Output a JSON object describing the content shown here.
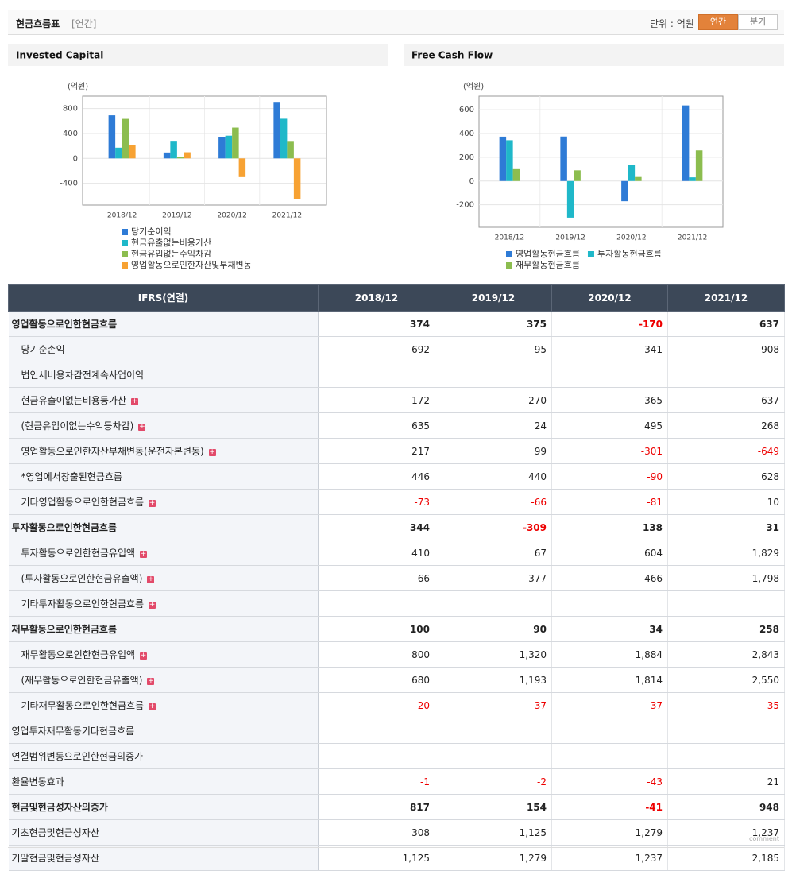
{
  "header": {
    "title": "현금흐름표",
    "period": "[연간]",
    "unit": "단위 : 억원",
    "tabs": [
      "연간",
      "분기"
    ],
    "active_tab": 0
  },
  "chart_data": [
    {
      "type": "bar",
      "title": "Invested Capital",
      "unit_label": "(억원)",
      "categories": [
        "2018/12",
        "2019/12",
        "2020/12",
        "2021/12"
      ],
      "series": [
        {
          "name": "당기순이익",
          "color": "#2e7bd6",
          "values": [
            692,
            95,
            341,
            908
          ]
        },
        {
          "name": "현금유출없는비용가산",
          "color": "#1fb8c9",
          "values": [
            172,
            270,
            365,
            637
          ]
        },
        {
          "name": "현금유입없는수익차감",
          "color": "#8cbd4f",
          "values": [
            635,
            24,
            495,
            268
          ]
        },
        {
          "name": "영업활동으로인한자산및부채변동",
          "color": "#f7a233",
          "values": [
            217,
            99,
            -301,
            -649
          ]
        }
      ],
      "ylim": [
        -750,
        1000
      ],
      "yticks": [
        -400,
        0,
        400,
        800
      ],
      "grid": true
    },
    {
      "type": "bar",
      "title": "Free Cash Flow",
      "unit_label": "(억원)",
      "categories": [
        "2018/12",
        "2019/12",
        "2020/12",
        "2021/12"
      ],
      "series": [
        {
          "name": "영업활동현금흐름",
          "color": "#2e7bd6",
          "values": [
            374,
            375,
            -170,
            637
          ]
        },
        {
          "name": "투자활동현금흐름",
          "color": "#1fb8c9",
          "values": [
            344,
            -309,
            138,
            31
          ]
        },
        {
          "name": "재무활동현금흐름",
          "color": "#8cbd4f",
          "values": [
            100,
            90,
            34,
            258
          ]
        }
      ],
      "ylim": [
        -390,
        715
      ],
      "yticks": [
        -200,
        0,
        200,
        400,
        600
      ],
      "grid": true
    }
  ],
  "table": {
    "columns": [
      "IFRS(연결)",
      "2018/12",
      "2019/12",
      "2020/12",
      "2021/12"
    ],
    "rows": [
      {
        "label": "영업활동으로인한현금흐름",
        "level": 0,
        "bold": true,
        "expand": false,
        "values": [
          "374",
          "375",
          "-170",
          "637"
        ]
      },
      {
        "label": "당기순손익",
        "level": 1,
        "bold": false,
        "expand": false,
        "values": [
          "692",
          "95",
          "341",
          "908"
        ]
      },
      {
        "label": "법인세비용차감전계속사업이익",
        "level": 1,
        "bold": false,
        "expand": false,
        "values": [
          null,
          null,
          null,
          null
        ]
      },
      {
        "label": "현금유출이없는비용등가산",
        "level": 1,
        "bold": false,
        "expand": true,
        "values": [
          "172",
          "270",
          "365",
          "637"
        ]
      },
      {
        "label": "(현금유입이없는수익등차감)",
        "level": 1,
        "bold": false,
        "expand": true,
        "values": [
          "635",
          "24",
          "495",
          "268"
        ]
      },
      {
        "label": "영업활동으로인한자산부채변동(운전자본변동)",
        "level": 1,
        "bold": false,
        "expand": true,
        "values": [
          "217",
          "99",
          "-301",
          "-649"
        ]
      },
      {
        "label": "*영업에서창출된현금흐름",
        "level": 1,
        "bold": false,
        "expand": false,
        "values": [
          "446",
          "440",
          "-90",
          "628"
        ]
      },
      {
        "label": "기타영업활동으로인한현금흐름",
        "level": 1,
        "bold": false,
        "expand": true,
        "values": [
          "-73",
          "-66",
          "-81",
          "10"
        ]
      },
      {
        "label": "투자활동으로인한현금흐름",
        "level": 0,
        "bold": true,
        "expand": false,
        "values": [
          "344",
          "-309",
          "138",
          "31"
        ]
      },
      {
        "label": "투자활동으로인한현금유입액",
        "level": 1,
        "bold": false,
        "expand": true,
        "values": [
          "410",
          "67",
          "604",
          "1,829"
        ]
      },
      {
        "label": "(투자활동으로인한현금유출액)",
        "level": 1,
        "bold": false,
        "expand": true,
        "values": [
          "66",
          "377",
          "466",
          "1,798"
        ]
      },
      {
        "label": "기타투자활동으로인한현금흐름",
        "level": 1,
        "bold": false,
        "expand": true,
        "values": [
          null,
          null,
          null,
          null
        ]
      },
      {
        "label": "재무활동으로인한현금흐름",
        "level": 0,
        "bold": true,
        "expand": false,
        "values": [
          "100",
          "90",
          "34",
          "258"
        ]
      },
      {
        "label": "재무활동으로인한현금유입액",
        "level": 1,
        "bold": false,
        "expand": true,
        "values": [
          "800",
          "1,320",
          "1,884",
          "2,843"
        ]
      },
      {
        "label": "(재무활동으로인한현금유출액)",
        "level": 1,
        "bold": false,
        "expand": true,
        "values": [
          "680",
          "1,193",
          "1,814",
          "2,550"
        ]
      },
      {
        "label": "기타재무활동으로인한현금흐름",
        "level": 1,
        "bold": false,
        "expand": true,
        "values": [
          "-20",
          "-37",
          "-37",
          "-35"
        ]
      },
      {
        "label": "영업투자재무활동기타현금흐름",
        "level": 0,
        "bold": false,
        "expand": false,
        "values": [
          null,
          null,
          null,
          null
        ]
      },
      {
        "label": "연결범위변동으로인한현금의증가",
        "level": 0,
        "bold": false,
        "expand": false,
        "values": [
          null,
          null,
          null,
          null
        ]
      },
      {
        "label": "환율변동효과",
        "level": 0,
        "bold": false,
        "expand": false,
        "values": [
          "-1",
          "-2",
          "-43",
          "21"
        ]
      },
      {
        "label": "현금및현금성자산의증가",
        "level": 0,
        "bold": true,
        "expand": false,
        "values": [
          "817",
          "154",
          "-41",
          "948"
        ]
      },
      {
        "label": "기초현금및현금성자산",
        "level": 0,
        "bold": false,
        "expand": false,
        "values": [
          "308",
          "1,125",
          "1,279",
          "1,237"
        ]
      },
      {
        "label": "기말현금및현금성자산",
        "level": 0,
        "bold": false,
        "expand": false,
        "values": [
          "1,125",
          "1,279",
          "1,237",
          "2,185"
        ]
      }
    ]
  },
  "footer": {
    "comment": "comment"
  }
}
